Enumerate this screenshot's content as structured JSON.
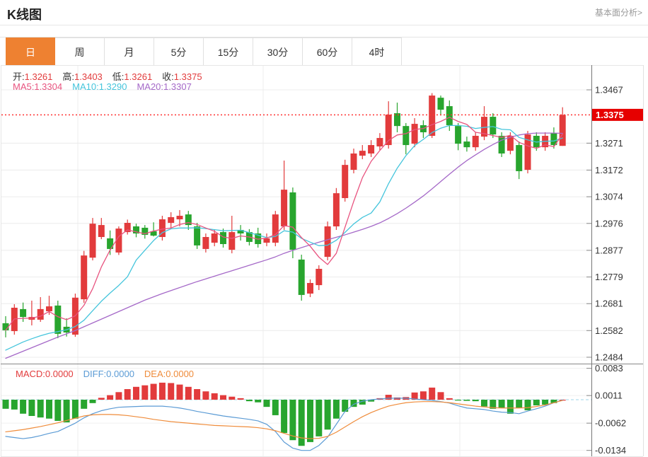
{
  "header": {
    "title": "K线图",
    "link": "基本面分析>"
  },
  "tabs": {
    "items": [
      "日",
      "周",
      "月",
      "5分",
      "15分",
      "30分",
      "60分",
      "4时"
    ],
    "selected_index": 0,
    "accent_color": "#ee8131"
  },
  "legend": {
    "ohlc": [
      {
        "label": "开:",
        "value": "1.3261"
      },
      {
        "label": "高:",
        "value": "1.3403"
      },
      {
        "label": "低:",
        "value": "1.3261"
      },
      {
        "label": "收:",
        "value": "1.3375"
      }
    ],
    "ma": [
      {
        "label": "MA5:",
        "value": "1.3304",
        "color": "#e8537f"
      },
      {
        "label": "MA10:",
        "value": "1.3290",
        "color": "#45c5dc"
      },
      {
        "label": "MA20:",
        "value": "1.3307",
        "color": "#a569c8"
      }
    ],
    "macd": [
      {
        "label": "MACD:",
        "value": "0.0000",
        "color": "#e23b3c"
      },
      {
        "label": "DIFF:",
        "value": "0.0000",
        "color": "#5b9bd5"
      },
      {
        "label": "DEA:",
        "value": "0.0000",
        "color": "#ef8c3b"
      }
    ]
  },
  "chart_data": {
    "type": "candlestick+macd",
    "title": "K线图 (daily K-line with MA5/MA10/MA20 and MACD)",
    "grid": true,
    "legend_position": "top-left",
    "price_axis": {
      "tick_labels": [
        "1.3467",
        "1.3271",
        "1.3172",
        "1.3074",
        "1.2976",
        "1.2877",
        "1.2779",
        "1.2681",
        "1.2582",
        "1.2484"
      ],
      "tick_values": [
        1.3467,
        1.3271,
        1.3172,
        1.3074,
        1.2976,
        1.2877,
        1.2779,
        1.2681,
        1.2582,
        1.2484
      ],
      "last_price_label": "1.3375",
      "last_price": 1.3375
    },
    "macd_axis": {
      "tick_labels": [
        "0.0083",
        "0.0011",
        "-0.0062",
        "-0.0134"
      ],
      "tick_values": [
        0.0083,
        0.0011,
        -0.0062,
        -0.0134
      ]
    },
    "candles": [
      [
        1.2609,
        1.2635,
        1.2557,
        1.2583
      ],
      [
        1.258,
        1.2679,
        1.2567,
        1.2666
      ],
      [
        1.2661,
        1.2685,
        1.2614,
        1.2632
      ],
      [
        1.2622,
        1.2692,
        1.2601,
        1.2632
      ],
      [
        1.2622,
        1.2705,
        1.2614,
        1.2661
      ],
      [
        1.2653,
        1.271,
        1.264,
        1.2671
      ],
      [
        1.2674,
        1.2692,
        1.2554,
        1.257
      ],
      [
        1.2596,
        1.2627,
        1.256,
        1.2575
      ],
      [
        1.2567,
        1.2718,
        1.2559,
        1.2703
      ],
      [
        1.2697,
        1.2875,
        1.2684,
        1.2858
      ],
      [
        1.285,
        1.2996,
        1.284,
        1.2975
      ],
      [
        1.2926,
        1.2996,
        1.2918,
        1.297
      ],
      [
        1.2921,
        1.295,
        1.286,
        1.2882
      ],
      [
        1.2869,
        1.2965,
        1.286,
        1.2957
      ],
      [
        1.2944,
        1.299,
        1.2935,
        1.2978
      ],
      [
        1.2965,
        1.2975,
        1.2925,
        1.2939
      ],
      [
        1.296,
        1.297,
        1.292,
        1.2934
      ],
      [
        1.2947,
        1.298,
        1.2928,
        1.2931
      ],
      [
        1.2926,
        1.3004,
        1.2913,
        1.2991
      ],
      [
        1.2978,
        1.3017,
        1.296,
        1.2999
      ],
      [
        1.2991,
        1.3025,
        1.2965,
        1.3004
      ],
      [
        1.3009,
        1.3022,
        1.2952,
        1.297
      ],
      [
        1.2965,
        1.2978,
        1.2882,
        1.2895
      ],
      [
        1.2882,
        1.2939,
        1.2869,
        1.2926
      ],
      [
        1.2905,
        1.2952,
        1.2892,
        1.2939
      ],
      [
        1.2944,
        1.2957,
        1.2887,
        1.29
      ],
      [
        1.2879,
        1.3004,
        1.2866,
        1.2944
      ],
      [
        1.2952,
        1.297,
        1.2913,
        1.2939
      ],
      [
        1.2944,
        1.2955,
        1.2895,
        1.2908
      ],
      [
        1.2939,
        1.296,
        1.2887,
        1.29
      ],
      [
        1.2905,
        1.2939,
        1.2892,
        1.2921
      ],
      [
        1.2905,
        1.3022,
        1.2892,
        1.3009
      ],
      [
        1.2965,
        1.3207,
        1.2952,
        1.31
      ],
      [
        1.309,
        1.3108,
        1.2848,
        1.2879
      ],
      [
        1.2843,
        1.2861,
        1.2692,
        1.2713
      ],
      [
        1.2718,
        1.277,
        1.2705,
        1.2757
      ],
      [
        1.2749,
        1.2822,
        1.2731,
        1.2809
      ],
      [
        1.2853,
        1.2983,
        1.284,
        1.2965
      ],
      [
        1.2965,
        1.3106,
        1.2952,
        1.3087
      ],
      [
        1.3069,
        1.321,
        1.3056,
        1.3191
      ],
      [
        1.3173,
        1.3251,
        1.316,
        1.3233
      ],
      [
        1.3225,
        1.3264,
        1.3212,
        1.3243
      ],
      [
        1.3233,
        1.3282,
        1.322,
        1.3264
      ],
      [
        1.3259,
        1.3308,
        1.3246,
        1.329
      ],
      [
        1.3264,
        1.3425,
        1.3251,
        1.3376
      ],
      [
        1.3381,
        1.342,
        1.3311,
        1.3334
      ],
      [
        1.3334,
        1.3345,
        1.323,
        1.3264
      ],
      [
        1.3269,
        1.3363,
        1.3256,
        1.3342
      ],
      [
        1.3337,
        1.3355,
        1.329,
        1.3311
      ],
      [
        1.3298,
        1.3455,
        1.329,
        1.3446
      ],
      [
        1.3438,
        1.3446,
        1.3373,
        1.3394
      ],
      [
        1.3407,
        1.3428,
        1.3316,
        1.3337
      ],
      [
        1.3334,
        1.3345,
        1.3245,
        1.3269
      ],
      [
        1.3277,
        1.3295,
        1.324,
        1.3256
      ],
      [
        1.3256,
        1.3311,
        1.3243,
        1.3298
      ],
      [
        1.3295,
        1.3407,
        1.3282,
        1.3368
      ],
      [
        1.3368,
        1.3381,
        1.329,
        1.3303
      ],
      [
        1.3298,
        1.3311,
        1.322,
        1.3233
      ],
      [
        1.3243,
        1.3311,
        1.323,
        1.3298
      ],
      [
        1.3264,
        1.3277,
        1.3139,
        1.3168
      ],
      [
        1.3173,
        1.3316,
        1.316,
        1.3303
      ],
      [
        1.3298,
        1.3311,
        1.3243,
        1.3256
      ],
      [
        1.3256,
        1.3311,
        1.3243,
        1.3298
      ],
      [
        1.3308,
        1.3329,
        1.3251,
        1.3264
      ],
      [
        1.3261,
        1.3403,
        1.3261,
        1.3375
      ]
    ],
    "ma5": [
      1.2583,
      1.2625,
      1.2627,
      1.2628,
      1.2635,
      1.2652,
      1.2633,
      1.2622,
      1.2636,
      1.2675,
      1.2736,
      1.2816,
      1.2878,
      1.2928,
      1.2952,
      1.2945,
      1.2938,
      1.2948,
      1.2955,
      1.2959,
      1.2972,
      1.2979,
      1.2972,
      1.2959,
      1.2947,
      1.2926,
      1.2921,
      1.293,
      1.2926,
      1.2918,
      1.2922,
      1.2935,
      1.2968,
      1.2962,
      1.2924,
      1.2892,
      1.2852,
      1.2825,
      1.2866,
      1.2962,
      1.3057,
      1.3144,
      1.3204,
      1.3244,
      1.3281,
      1.3301,
      1.3306,
      1.3321,
      1.3325,
      1.3339,
      1.3351,
      1.3366,
      1.3351,
      1.334,
      1.3311,
      1.3306,
      1.3299,
      1.3292,
      1.33,
      1.3274,
      1.3261,
      1.3252,
      1.3265,
      1.3258,
      1.3304
    ],
    "ma10": [
      1.251,
      1.2525,
      1.254,
      1.2552,
      1.2563,
      1.2572,
      1.2578,
      1.2585,
      1.2597,
      1.262,
      1.2655,
      1.269,
      1.272,
      1.2748,
      1.278,
      1.2841,
      1.2877,
      1.2913,
      1.2942,
      1.2956,
      1.2959,
      1.2959,
      1.296,
      1.2957,
      1.2953,
      1.2949,
      1.295,
      1.2951,
      1.2942,
      1.2933,
      1.2924,
      1.2928,
      1.2949,
      1.2944,
      1.2921,
      1.2907,
      1.2894,
      1.2896,
      1.2914,
      1.2943,
      1.2974,
      1.2998,
      1.3014,
      1.3055,
      1.3122,
      1.3179,
      1.3225,
      1.3262,
      1.3285,
      1.331,
      1.3326,
      1.3336,
      1.3336,
      1.3333,
      1.3325,
      1.3329,
      1.3332,
      1.3322,
      1.332,
      1.3292,
      1.3283,
      1.3275,
      1.3278,
      1.3279,
      1.329
    ],
    "ma20": [
      1.248,
      1.2493,
      1.2506,
      1.2519,
      1.2532,
      1.2545,
      1.2558,
      1.257,
      1.2582,
      1.2596,
      1.261,
      1.2624,
      1.2638,
      1.2652,
      1.2666,
      1.268,
      1.2694,
      1.2706,
      1.2718,
      1.2729,
      1.274,
      1.2751,
      1.2762,
      1.2772,
      1.2782,
      1.2792,
      1.2802,
      1.2812,
      1.2822,
      1.2832,
      1.2842,
      1.2853,
      1.2866,
      1.2877,
      1.2887,
      1.2897,
      1.2907,
      1.2916,
      1.2925,
      1.2934,
      1.2944,
      1.2954,
      1.2965,
      1.2978,
      1.2994,
      1.3012,
      1.3032,
      1.3054,
      1.3077,
      1.3103,
      1.313,
      1.3157,
      1.3183,
      1.3207,
      1.3228,
      1.3248,
      1.3266,
      1.3282,
      1.3293,
      1.3301,
      1.3306,
      1.3308,
      1.3308,
      1.3308,
      1.3307
    ],
    "macd": {
      "hist": [
        -0.0024,
        -0.0026,
        -0.0037,
        -0.0043,
        -0.0047,
        -0.005,
        -0.0056,
        -0.006,
        -0.005,
        -0.0024,
        -0.0009,
        0.0005,
        0.0012,
        0.002,
        0.0028,
        0.0034,
        0.0038,
        0.0042,
        0.0045,
        0.0044,
        0.004,
        0.0034,
        0.0028,
        0.0022,
        0.0017,
        0.0012,
        0.0008,
        0.0004,
        -0.0004,
        -0.0007,
        -0.0019,
        -0.0041,
        -0.0088,
        -0.0107,
        -0.0122,
        -0.0112,
        -0.0097,
        -0.0079,
        -0.005,
        -0.0032,
        -0.0019,
        -0.0013,
        -0.0005,
        0.0004,
        0.0013,
        0.0006,
        0.0007,
        0.0019,
        0.0022,
        0.0032,
        0.002,
        0.0004,
        -0.0002,
        -0.0003,
        -0.0004,
        -0.0018,
        -0.0024,
        -0.0022,
        -0.0037,
        -0.0022,
        -0.0028,
        -0.0015,
        -0.0013,
        -0.0009,
        0.0
      ],
      "diff": [
        -0.0097,
        -0.01,
        -0.0103,
        -0.01,
        -0.0095,
        -0.0089,
        -0.0084,
        -0.0073,
        -0.0062,
        -0.0048,
        -0.0037,
        -0.0029,
        -0.0024,
        -0.002,
        -0.0019,
        -0.0018,
        -0.0017,
        -0.0017,
        -0.0017,
        -0.0019,
        -0.0022,
        -0.0026,
        -0.0031,
        -0.0035,
        -0.0039,
        -0.0043,
        -0.0046,
        -0.0049,
        -0.0052,
        -0.0056,
        -0.0065,
        -0.0084,
        -0.0112,
        -0.0128,
        -0.0134,
        -0.0134,
        -0.0121,
        -0.0099,
        -0.0065,
        -0.0031,
        -0.0012,
        -0.0004,
        0.0,
        0.0002,
        0.0004,
        0.0004,
        0.0004,
        0.0002,
        0.0,
        -0.0002,
        -0.0005,
        -0.0009,
        -0.0016,
        -0.0022,
        -0.0024,
        -0.0026,
        -0.003,
        -0.0033,
        -0.0034,
        -0.0037,
        -0.003,
        -0.0024,
        -0.0017,
        -0.0008,
        -0.0001
      ],
      "dea": [
        -0.0085,
        -0.0082,
        -0.0079,
        -0.0075,
        -0.0071,
        -0.0066,
        -0.0061,
        -0.0055,
        -0.0049,
        -0.0043,
        -0.004,
        -0.0039,
        -0.0039,
        -0.004,
        -0.0042,
        -0.0045,
        -0.0048,
        -0.0052,
        -0.0055,
        -0.0058,
        -0.006,
        -0.0062,
        -0.0064,
        -0.0066,
        -0.0068,
        -0.0069,
        -0.007,
        -0.0071,
        -0.0072,
        -0.0074,
        -0.0077,
        -0.0082,
        -0.0089,
        -0.0096,
        -0.0101,
        -0.0103,
        -0.0102,
        -0.0097,
        -0.0086,
        -0.0072,
        -0.0058,
        -0.0045,
        -0.0034,
        -0.0025,
        -0.0017,
        -0.0012,
        -0.0008,
        -0.0006,
        -0.0005,
        -0.0005,
        -0.0006,
        -0.0008,
        -0.0011,
        -0.0014,
        -0.0017,
        -0.0019,
        -0.0021,
        -0.0022,
        -0.0022,
        -0.0022,
        -0.0021,
        -0.0018,
        -0.0014,
        -0.0008,
        -0.0002
      ]
    },
    "colors": {
      "up": "#e23b3c",
      "down": "#28a52e",
      "ma5": "#e8537f",
      "ma10": "#45c5dc",
      "ma20": "#a569c8",
      "diff": "#5b9bd5",
      "dea": "#ef8c3b",
      "price_line": "#ff3333",
      "price_tag_bg": "#e60000",
      "price_tag_text": "#ffffff",
      "grid": "#ececec",
      "axis": "#777777",
      "tick_text": "#333333"
    }
  }
}
